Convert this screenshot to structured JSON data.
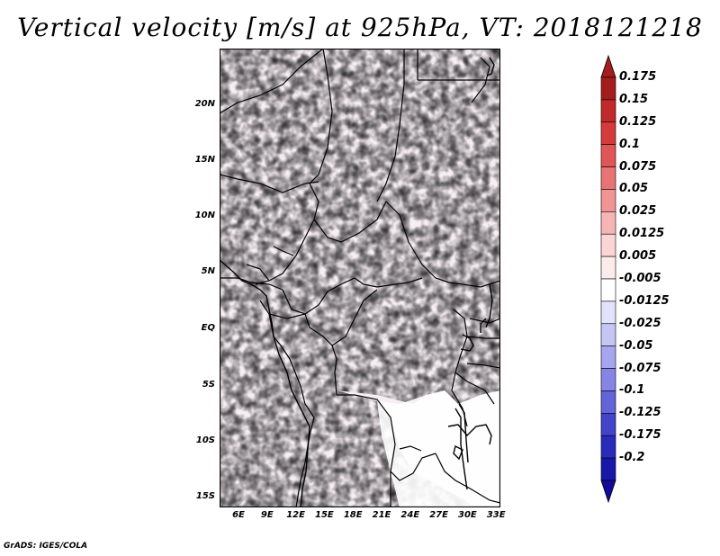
{
  "title": "Vertical velocity [m/s] at 925hPa, VT: 2018121218",
  "footer": "GrADS: IGES/COLA",
  "map": {
    "lat_ticks": [
      "20N",
      "15N",
      "10N",
      "5N",
      "EQ",
      "5S",
      "10S",
      "15S"
    ],
    "lon_ticks": [
      "6E",
      "9E",
      "12E",
      "15E",
      "18E",
      "21E",
      "24E",
      "27E",
      "30E",
      "33E"
    ]
  },
  "legend": {
    "levels": [
      {
        "label": "0.175",
        "color": "#a51c1c"
      },
      {
        "label": "0.15",
        "color": "#c02a2a"
      },
      {
        "label": "0.125",
        "color": "#d53b3b"
      },
      {
        "label": "0.1",
        "color": "#e05555"
      },
      {
        "label": "0.075",
        "color": "#e87373"
      },
      {
        "label": "0.05",
        "color": "#f09494"
      },
      {
        "label": "0.025",
        "color": "#f6b5b5"
      },
      {
        "label": "0.0125",
        "color": "#fbd5d5"
      },
      {
        "label": "0.005",
        "color": "#fdeaea"
      },
      {
        "label": "-0.005",
        "color": "#ffffff"
      },
      {
        "label": "-0.0125",
        "color": "#e2e2fb"
      },
      {
        "label": "-0.025",
        "color": "#c6c6f5"
      },
      {
        "label": "-0.05",
        "color": "#a6a6ee"
      },
      {
        "label": "-0.075",
        "color": "#8585e5"
      },
      {
        "label": "-0.1",
        "color": "#6363da"
      },
      {
        "label": "-0.125",
        "color": "#4343cc"
      },
      {
        "label": "-0.175",
        "color": "#2a2abb"
      },
      {
        "label": "-0.2",
        "color": "#1717a8"
      }
    ],
    "top_arrow_color": "#a51c1c",
    "bottom_arrow_color": "#130a9c"
  }
}
